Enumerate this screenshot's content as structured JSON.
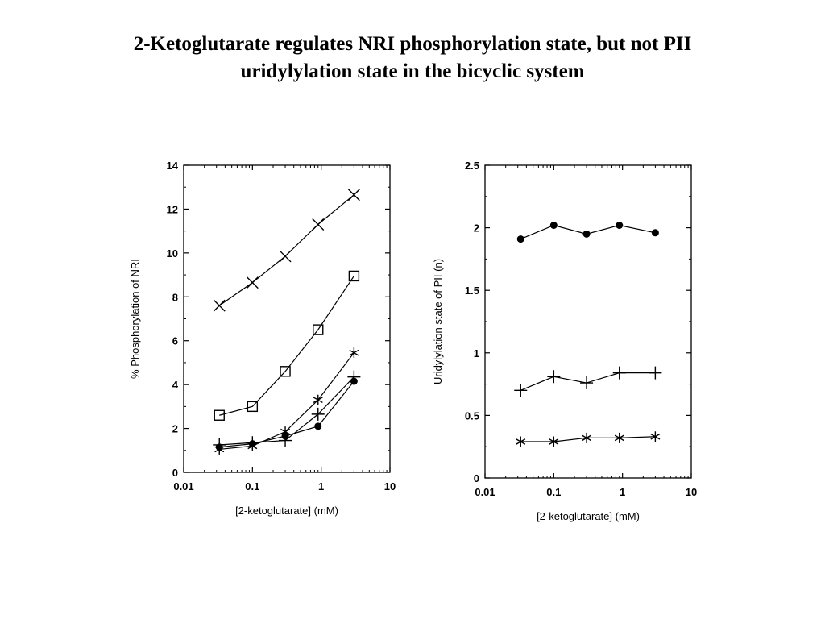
{
  "slide": {
    "title_line1": "2-Ketoglutarate regulates NRI phosphorylation state, but not PII",
    "title_line2": "uridylylation state in the bicyclic system"
  },
  "chart_data": [
    {
      "type": "line",
      "xscale": "log",
      "xlim": [
        0.01,
        10
      ],
      "ylim": [
        0,
        14
      ],
      "xlabel": "[2-ketoglutarate] (mM)",
      "ylabel": "% Phosphorylation of NRI",
      "x_ticks": [
        "0.01",
        "0.1",
        "1",
        "10"
      ],
      "y_ticks": [
        "0",
        "2",
        "4",
        "6",
        "8",
        "10",
        "12",
        "14"
      ],
      "x": [
        0.033,
        0.1,
        0.3,
        0.9,
        3
      ],
      "series": [
        {
          "marker": "x-cross",
          "values": [
            7.6,
            8.65,
            9.85,
            11.3,
            12.65
          ]
        },
        {
          "marker": "open-square",
          "values": [
            2.6,
            3.0,
            4.6,
            6.5,
            8.95
          ]
        },
        {
          "marker": "asterisk",
          "values": [
            1.05,
            1.2,
            1.85,
            3.3,
            5.45
          ]
        },
        {
          "marker": "plus",
          "values": [
            1.25,
            1.35,
            1.45,
            2.65,
            4.35
          ]
        },
        {
          "marker": "filled-circle",
          "values": [
            1.15,
            1.3,
            1.65,
            2.1,
            4.15
          ]
        }
      ]
    },
    {
      "type": "line",
      "xscale": "log",
      "xlim": [
        0.01,
        10
      ],
      "ylim": [
        0,
        2.5
      ],
      "xlabel": "[2-ketoglutarate] (mM)",
      "ylabel": "Uridylylation state of PII (n)",
      "x_ticks": [
        "0.01",
        "0.1",
        "1",
        "10"
      ],
      "y_ticks": [
        "0",
        "0.5",
        "1",
        "1.5",
        "2",
        "2.5"
      ],
      "x": [
        0.033,
        0.1,
        0.3,
        0.9,
        3
      ],
      "series": [
        {
          "marker": "filled-circle",
          "values": [
            1.91,
            2.02,
            1.95,
            2.02,
            1.96
          ]
        },
        {
          "marker": "plus",
          "values": [
            0.7,
            0.81,
            0.76,
            0.84,
            0.84
          ]
        },
        {
          "marker": "asterisk",
          "values": [
            0.29,
            0.29,
            0.32,
            0.32,
            0.33
          ]
        }
      ]
    }
  ]
}
